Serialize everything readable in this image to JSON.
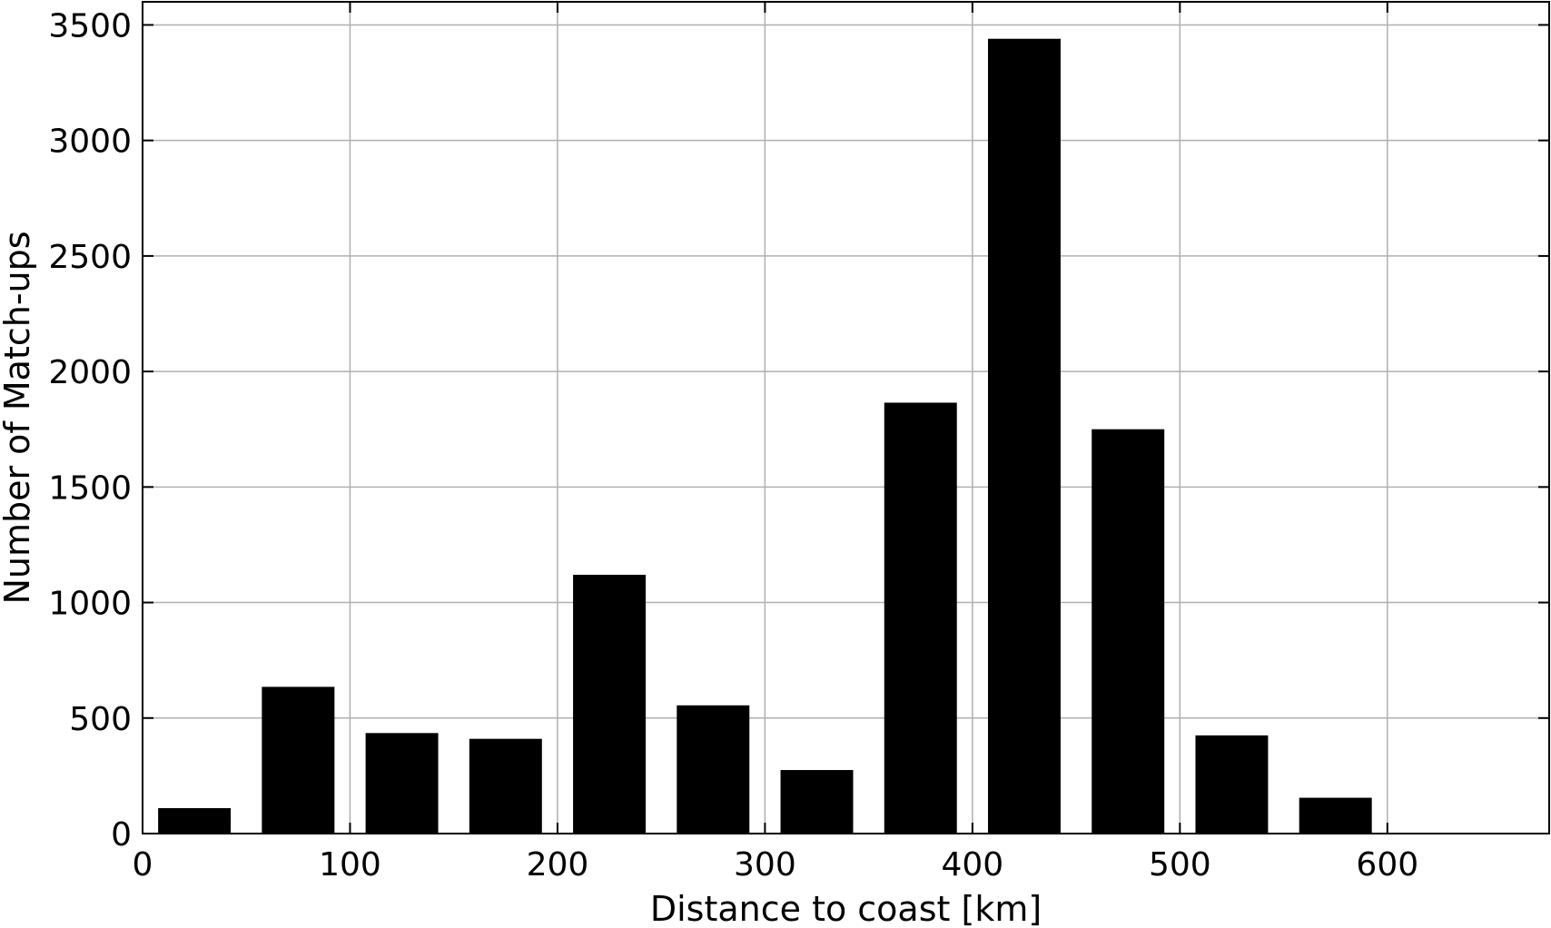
{
  "chart_data": {
    "type": "bar",
    "xlabel": "Distance to coast [km]",
    "ylabel": "Number of Match-ups",
    "xlim": [
      0,
      678
    ],
    "ylim": [
      0,
      3600
    ],
    "xticks": [
      0,
      100,
      200,
      300,
      400,
      500,
      600
    ],
    "yticks": [
      0,
      500,
      1000,
      1500,
      2000,
      2500,
      3000,
      3500
    ],
    "grid": true,
    "bar_width": 35,
    "bars": [
      {
        "x": 25,
        "value": 110
      },
      {
        "x": 75,
        "value": 635
      },
      {
        "x": 125,
        "value": 435
      },
      {
        "x": 175,
        "value": 410
      },
      {
        "x": 225,
        "value": 1120
      },
      {
        "x": 275,
        "value": 555
      },
      {
        "x": 325,
        "value": 275
      },
      {
        "x": 375,
        "value": 1865
      },
      {
        "x": 425,
        "value": 3440
      },
      {
        "x": 475,
        "value": 1750
      },
      {
        "x": 525,
        "value": 425
      },
      {
        "x": 575,
        "value": 155
      }
    ]
  }
}
